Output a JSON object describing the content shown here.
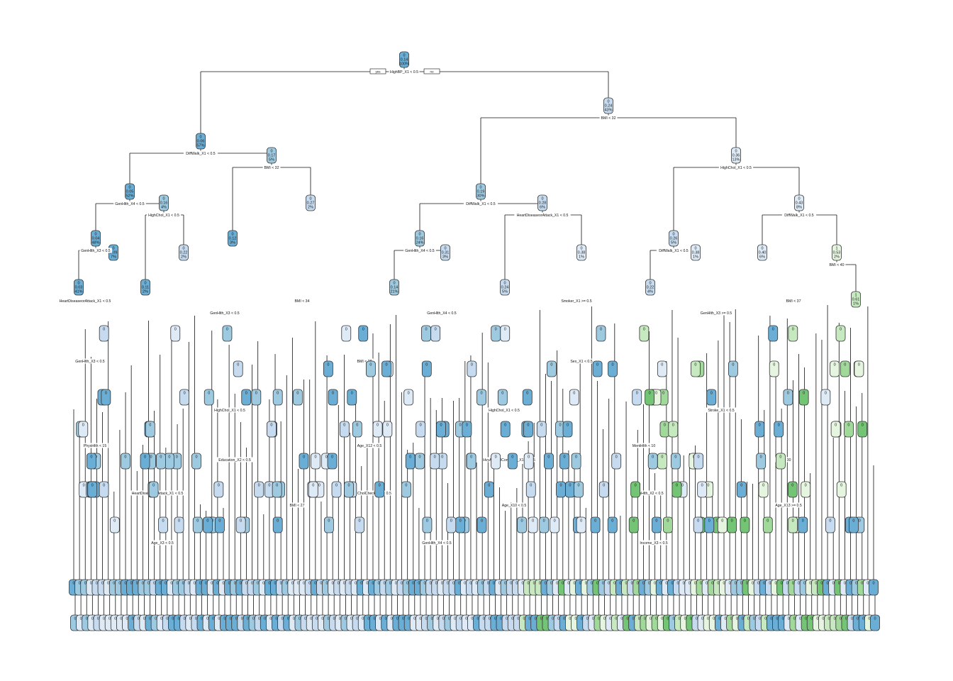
{
  "colors": {
    "blue_dark": "#6aaed6",
    "blue_mid": "#9ecae1",
    "blue_light": "#c6dbef",
    "blue_pale": "#deebf7",
    "green_pale": "#e5f5e0",
    "green_light": "#c7e9c0",
    "green_mid": "#a1d99b",
    "green_dark": "#74c476"
  },
  "root_labels": {
    "left": "yes",
    "right": "no"
  },
  "chart_data": {
    "type": "decision-tree",
    "nodes": [
      {
        "id": "n1",
        "class": "0",
        "value": "0.14",
        "pct": "100%",
        "split": "HighBP_X1 < 0.5",
        "fill": "blue_dark"
      },
      {
        "id": "n2",
        "parent": "n1",
        "class": "0",
        "value": "0.06",
        "pct": "57%",
        "split": "DiffWalk_X1 < 0.5",
        "fill": "blue_dark"
      },
      {
        "id": "n3",
        "parent": "n1",
        "class": "0",
        "value": "0.24",
        "pct": "43%",
        "split": "BMI < 32",
        "fill": "blue_light"
      },
      {
        "id": "n4",
        "parent": "n2",
        "class": "0",
        "value": "0.05",
        "pct": "52%",
        "split": "GenHlth_X4 < 0.5",
        "fill": "blue_dark"
      },
      {
        "id": "n5",
        "parent": "n2",
        "class": "0",
        "value": "0.17",
        "pct": "5%",
        "split": "BMI < 32",
        "fill": "blue_mid"
      },
      {
        "id": "n6",
        "parent": "n3",
        "class": "0",
        "value": "0.19",
        "pct": "30%",
        "split": "DiffWalk_X1 < 0.5",
        "fill": "blue_mid"
      },
      {
        "id": "n7",
        "parent": "n3",
        "class": "0",
        "value": "0.36",
        "pct": "13%",
        "split": "HighChol_X1 < 0.5",
        "fill": "blue_pale"
      },
      {
        "id": "n8",
        "parent": "n4",
        "class": "0",
        "value": "0.04",
        "pct": "48%",
        "split": "GenHlth_X3 < 0.5",
        "fill": "blue_dark"
      },
      {
        "id": "n9",
        "parent": "n4",
        "class": "0",
        "value": "0.16",
        "pct": "4%",
        "split": "HighChol_X1 < 0.5",
        "fill": "blue_mid"
      },
      {
        "id": "n10",
        "parent": "n5",
        "class": "0",
        "value": "0.12",
        "pct": "3%",
        "split": "HeartDiseaseorAttack_X1 < 0.5",
        "fill": "blue_dark"
      },
      {
        "id": "n11",
        "parent": "n5",
        "class": "0",
        "value": "0.27",
        "pct": "2%",
        "split": "HighChol_X1 < 0.5",
        "fill": "blue_light"
      },
      {
        "id": "n12",
        "parent": "n6",
        "class": "0",
        "value": "0.16",
        "pct": "24%",
        "split": "GenHlth_X4 < 0.5",
        "fill": "blue_mid"
      },
      {
        "id": "n13",
        "parent": "n6",
        "class": "0",
        "value": "0.28",
        "pct": "6%",
        "split": "HeartDiseaseorAttack_X1 < 0.5",
        "fill": "blue_light"
      },
      {
        "id": "n14",
        "parent": "n7",
        "class": "0",
        "value": "0.26",
        "pct": "5%",
        "split": "DiffWalk_X1 < 0.5",
        "fill": "blue_light"
      },
      {
        "id": "n15",
        "parent": "n7",
        "class": "0",
        "value": "0.43",
        "pct": "8%",
        "split": "DiffWalk_X1 < 0.5",
        "fill": "blue_pale"
      },
      {
        "id": "n16",
        "parent": "n8",
        "class": "0",
        "value": "0.03",
        "pct": "41%",
        "split": "GenHlth_X2 < 0.5",
        "fill": "blue_dark"
      },
      {
        "id": "n17",
        "parent": "n8",
        "class": "0",
        "value": "0.09",
        "pct": "7%",
        "split": "HighChol_X1 < 0.5",
        "fill": "blue_dark"
      },
      {
        "id": "n18",
        "parent": "n9",
        "class": "0",
        "value": "0.11",
        "pct": "2%",
        "split": "MentHlth < 10",
        "fill": "blue_dark"
      },
      {
        "id": "n19",
        "parent": "n9",
        "class": "0",
        "value": "0.22",
        "pct": "2%",
        "split": "BMI < 33",
        "fill": "blue_light"
      },
      {
        "id": "n20",
        "parent": "n12",
        "class": "0",
        "value": "0.14",
        "pct": "21%",
        "split": "GenHlth_X3 < 0.5",
        "fill": "blue_mid"
      },
      {
        "id": "n21",
        "parent": "n12",
        "class": "0",
        "value": "0.31",
        "pct": "3%",
        "split": "HighChol_X1 < 0.5",
        "fill": "blue_light"
      },
      {
        "id": "n22",
        "parent": "n13",
        "class": "0",
        "value": "0.24",
        "pct": "5%",
        "split": "HighChol_X1 < 0.5",
        "fill": "blue_light"
      },
      {
        "id": "n23",
        "parent": "n13",
        "class": "0",
        "value": "0.38",
        "pct": "1%",
        "split": "BMI < 25",
        "fill": "blue_pale"
      },
      {
        "id": "n24",
        "parent": "n14",
        "class": "0",
        "value": "0.22",
        "pct": "4%",
        "split": "DiffWalk_X1 < 0.5",
        "fill": "blue_light"
      },
      {
        "id": "n25",
        "parent": "n14",
        "class": "0",
        "value": "0.38",
        "pct": "1%",
        "split": "HeartDiseaseorAttack_X1 < 0.5",
        "fill": "blue_pale"
      },
      {
        "id": "n26",
        "parent": "n15",
        "class": "0",
        "value": "0.40",
        "pct": "6%",
        "split": "GenHlth_X4 < 0.5",
        "fill": "blue_pale"
      },
      {
        "id": "n27",
        "parent": "n15",
        "class": "1",
        "value": "0.53",
        "pct": "2%",
        "split": "BMI < 40",
        "fill": "green_pale"
      },
      {
        "id": "n28",
        "parent": "n27",
        "class": "1",
        "value": "0.61",
        "pct": "1%",
        "split": "GenHlth_X3 >= 0.5",
        "fill": "green_light"
      }
    ],
    "intermediate_split_labels": [
      "HeartDiseaseorAttack_X1 < 0.5",
      "GenHlth_X3 < 0.5",
      "BMI < 28",
      "HighChol_X1 < 0.5",
      "MentHlth < 10",
      "BMI < 30",
      "HeartDiseaseorAttack_X1 < 0.5",
      "BMI < 27",
      "GenHlth_X4 < 0.5",
      "Smoker_X1 >= 0.5",
      "GenHlth_X3 >= 0.5",
      "GenHlth_X3 < 0.5",
      "HighChol_X1 < 0.5",
      "Age_X12 < 0.5",
      "HvyAlcoholConsump_X1 >= 0.5",
      "GenHlth_X2 < 0.5",
      "Age_X13 >= 0.5",
      "Age_X3 < 0.5",
      "BMI < 34",
      "GenHlth_X4 < 0.5",
      "Sex_X1 < 0.5",
      "Stroke_X1 < 0.5",
      "PhysHlth < 15",
      "Education_X2 < 0.5",
      "CholCheck_X1 < 0.5",
      "Age_X10 < 0.5",
      "Income_X3 < 0.5",
      "BMI < 37"
    ],
    "leaf_count": 140
  }
}
